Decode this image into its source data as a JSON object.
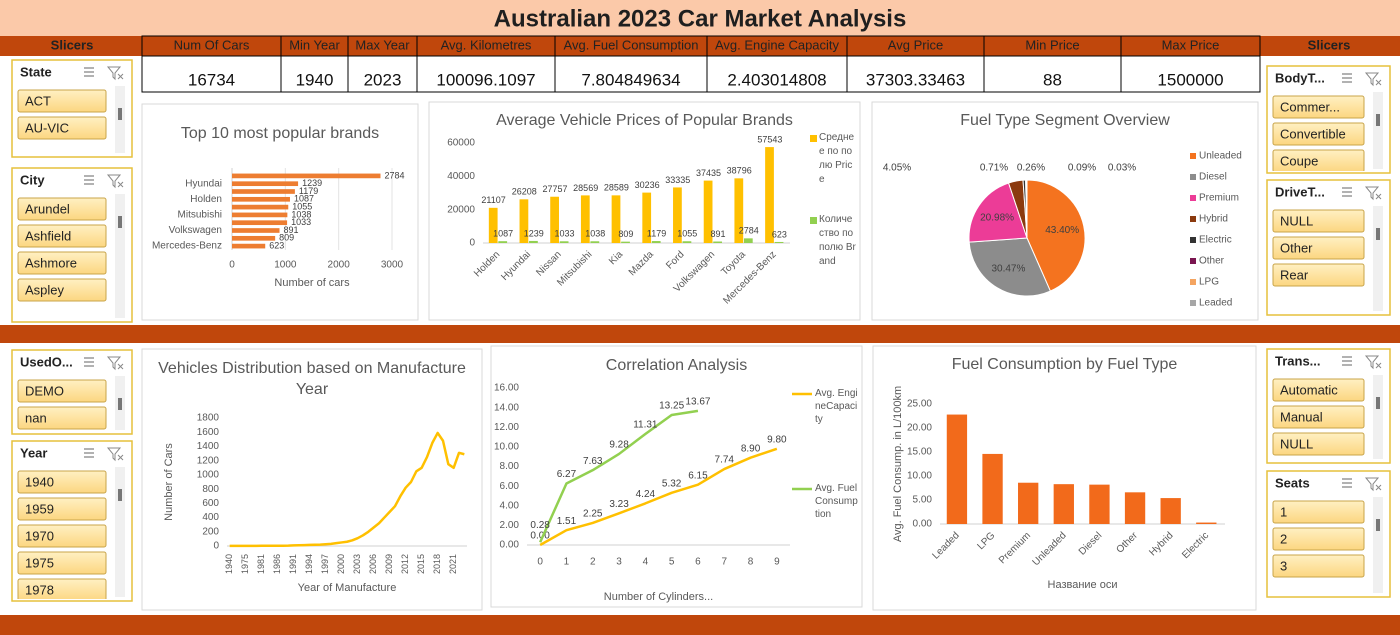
{
  "title": "Australian 2023 Car Market Analysis",
  "slicer_headers": [
    "Slicers",
    "Slicers"
  ],
  "kpis": {
    "headers": [
      "Num Of Cars",
      "Min Year",
      "Max Year",
      "Avg. Kilometres",
      "Avg. Fuel Consumption",
      "Avg. Engine Capacity",
      "Avg Price",
      "Min Price",
      "Max Price"
    ],
    "values": [
      16734,
      1940,
      2023,
      100096.1097,
      7.804849634,
      2.403014808,
      37303.33463,
      88,
      1500000
    ]
  },
  "slicers": [
    {
      "title": "State",
      "items": [
        "ACT",
        "AU-VIC"
      ]
    },
    {
      "title": "City",
      "items": [
        "Arundel",
        "Ashfield",
        "Ashmore",
        "Aspley"
      ]
    },
    {
      "title": "UsedO...",
      "items": [
        "DEMO",
        "nan"
      ]
    },
    {
      "title": "Year",
      "items": [
        "1940",
        "1959",
        "1970",
        "1975",
        "1978"
      ]
    },
    {
      "title": "BodyT...",
      "items": [
        "Commer...",
        "Convertible",
        "Coupe"
      ]
    },
    {
      "title": "DriveT...",
      "items": [
        "NULL",
        "Other",
        "Rear"
      ]
    },
    {
      "title": "Trans...",
      "items": [
        "Automatic",
        "Manual",
        "NULL"
      ]
    },
    {
      "title": "Seats",
      "items": [
        "1",
        "2",
        "3"
      ]
    }
  ],
  "chart_data": [
    {
      "type": "bar",
      "orientation": "horizontal",
      "title": "Top 10 most popular brands",
      "categories": [
        null,
        "Hyundai",
        null,
        "Holden",
        null,
        "Mitsubishi",
        null,
        "Volkswagen",
        null,
        "Mercedes-Benz"
      ],
      "values": [
        2784,
        1239,
        1179,
        1087,
        1055,
        1038,
        1033,
        891,
        809,
        623
      ],
      "color": "#ed7d31",
      "xlim": [
        0,
        3000
      ],
      "xticks": [
        0,
        1000,
        2000,
        3000
      ],
      "xlabel": "Number of cars",
      "grid": true,
      "data_labels": true
    },
    {
      "type": "bar",
      "title": "Average Vehicle Prices of Popular Brands",
      "categories": [
        "Holden",
        "Hyundai",
        "Nissan",
        "Mitsubishi",
        "Kia",
        "Mazda",
        "Ford",
        "Volkswagen",
        "Toyota",
        "Mercedes-Benz"
      ],
      "series": [
        {
          "name": "Среднее по полю Price",
          "color": "#ffc000",
          "values": [
            21107,
            26208,
            27757,
            28569,
            28589,
            30236,
            33335,
            37435,
            38796,
            57543
          ]
        },
        {
          "name": "Количество по полю Brand",
          "color": "#92d050",
          "values": [
            1087,
            1239,
            1033,
            1038,
            809,
            1179,
            1055,
            891,
            2784,
            623
          ]
        }
      ],
      "ylim": [
        0,
        60000
      ],
      "yticks": [
        0,
        20000,
        40000,
        60000
      ],
      "grid": false,
      "data_labels": true,
      "legend": "right"
    },
    {
      "type": "pie",
      "title": "Fuel Type Segment Overview",
      "categories": [
        "Unleaded",
        "Diesel",
        "Premium",
        "Hybrid",
        "Electric",
        "Other",
        "LPG",
        "Leaded"
      ],
      "values": [
        43.4,
        30.47,
        20.98,
        4.05,
        0.71,
        0.26,
        0.09,
        0.03
      ],
      "value_labels": [
        "43.40%",
        "30.47%",
        "20.98%",
        "4.05%",
        "0.71%",
        "0.26%",
        "0.09%",
        "0.03%"
      ],
      "colors": [
        "#f4731f",
        "#8c8c8c",
        "#ec3c97",
        "#8b3a0e",
        "#333333",
        "#7a1550",
        "#f4a460",
        "#a6a6a6"
      ],
      "legend": "right"
    },
    {
      "type": "line",
      "title": "Vehicles Distribution based on Manufacture Year",
      "categories": [
        "1940",
        null,
        null,
        "1975",
        null,
        null,
        "1981",
        null,
        null,
        "1986",
        null,
        null,
        "1991",
        null,
        null,
        "1994",
        null,
        null,
        "1997",
        null,
        null,
        "2000",
        null,
        null,
        "2003",
        null,
        null,
        "2006",
        null,
        null,
        "2009",
        null,
        null,
        "2012",
        null,
        null,
        "2015",
        null,
        null,
        "2018",
        null,
        null,
        "2021",
        null,
        null
      ],
      "values": [
        1,
        1,
        1,
        2,
        2,
        2,
        3,
        3,
        3,
        4,
        4,
        5,
        8,
        10,
        12,
        15,
        18,
        20,
        25,
        30,
        40,
        50,
        60,
        80,
        110,
        150,
        200,
        260,
        320,
        400,
        480,
        560,
        700,
        820,
        900,
        1050,
        1100,
        1250,
        1450,
        1590,
        1480,
        1150,
        1100,
        1310,
        1290
      ],
      "color": "#ffc000",
      "ylim": [
        0,
        1800
      ],
      "yticks": [
        0,
        200,
        400,
        600,
        800,
        1000,
        1200,
        1400,
        1600,
        1800
      ],
      "ylabel": "Number of Cars",
      "xlabel": "Year of Manufacture"
    },
    {
      "type": "line",
      "title": "Correlation Analysis",
      "x": [
        0,
        1,
        2,
        3,
        4,
        5,
        6,
        7,
        8,
        9
      ],
      "xlim": [
        -0.5,
        9.5
      ],
      "xticks": [
        0,
        1,
        2,
        3,
        4,
        5,
        6,
        7,
        8,
        9
      ],
      "ylim": [
        0,
        16
      ],
      "yticks": [
        {
          "value": 0,
          "label": "0.00"
        },
        {
          "value": 2,
          "label": "2.00"
        },
        {
          "value": 4,
          "label": "4.00"
        },
        {
          "value": 6,
          "label": "6.00"
        },
        {
          "value": 8,
          "label": "8.00"
        },
        {
          "value": 10,
          "label": "10.00"
        },
        {
          "value": 12,
          "label": "12.00"
        },
        {
          "value": 14,
          "label": "14.00"
        },
        {
          "value": 16,
          "label": "16.00"
        }
      ],
      "xlabel": "Number of Cylinders...",
      "legend": "right",
      "series": [
        {
          "name": "Avg. EngineCapacity",
          "color": "#ffc000",
          "values": [
            0,
            1.51,
            2.25,
            3.23,
            4.24,
            5.32,
            6.15,
            7.74,
            8.9,
            9.8
          ],
          "value_labels": [
            "0.00",
            "1.51",
            "2.25",
            "3.23",
            "4.24",
            "5.32",
            "6.15",
            "7.74",
            "8.90",
            "9.80"
          ]
        },
        {
          "name": "Avg. FuelConsumption",
          "color": "#92d050",
          "values": [
            0.28,
            6.27,
            7.63,
            9.28,
            11.31,
            13.25,
            13.67,
            null,
            null,
            null
          ],
          "value_labels": [
            "0.28",
            "6.27",
            "7.63",
            "9.28",
            "11.31",
            "13.25",
            "13.67",
            null,
            null,
            null
          ]
        }
      ]
    },
    {
      "type": "bar",
      "title": "Fuel Consumption by Fuel Type",
      "categories": [
        "Leaded",
        "LPG",
        "Premium",
        "Unleaded",
        "Diesel",
        "Other",
        "Hybrid",
        "Electric"
      ],
      "values": [
        22.8,
        14.6,
        8.6,
        8.3,
        8.2,
        6.6,
        5.4,
        0.3
      ],
      "color": "#f26a1b",
      "ylim": [
        0,
        25
      ],
      "yticks": [
        {
          "value": 0,
          "label": "0.00"
        },
        {
          "value": 5,
          "label": "5.00"
        },
        {
          "value": 10,
          "label": "10.00"
        },
        {
          "value": 15,
          "label": "15.00"
        },
        {
          "value": 20,
          "label": "20.00"
        },
        {
          "value": 25,
          "label": "25.00"
        }
      ],
      "ylabel": "Avg. Fuel Consump. in L/100km",
      "xlabel": "Название оси",
      "grid": false
    }
  ]
}
